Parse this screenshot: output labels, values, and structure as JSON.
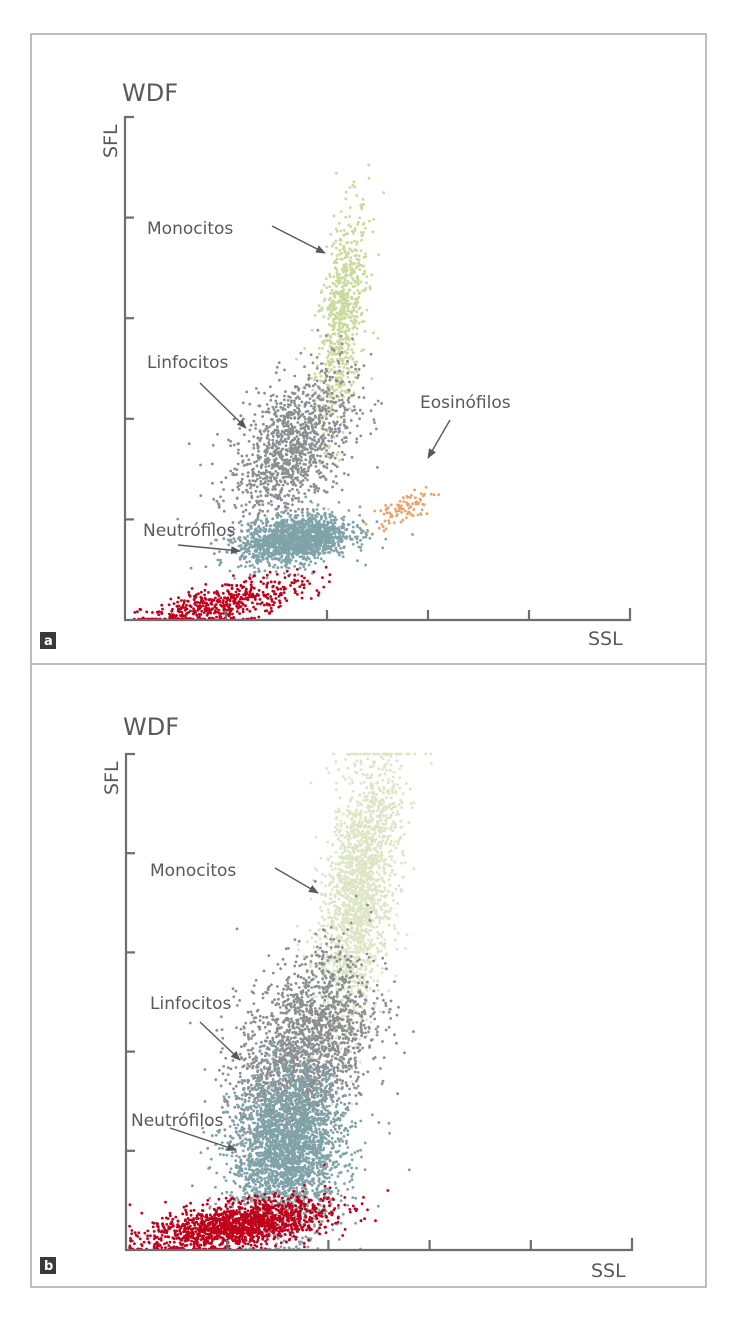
{
  "chart_data": [
    {
      "type": "scatter",
      "panel_label": "a",
      "title": "WDF",
      "xlabel": "SSL",
      "ylabel": "SFL",
      "xlim": [
        0,
        5
      ],
      "ylim": [
        0,
        5
      ],
      "grid": false,
      "annotations": [
        "Monocitos",
        "Linfocitos",
        "Eosinófilos",
        "Neutrófilos"
      ],
      "clusters": [
        {
          "label": "Monocitos",
          "color": "#c9da9c",
          "n": 700,
          "center": [
            2.15,
            3.0
          ],
          "spread": [
            0.13,
            0.55
          ],
          "corr": 0.5
        },
        {
          "label": "Linfocitos",
          "color": "#8d8e90",
          "n": 1200,
          "center": [
            1.65,
            1.7
          ],
          "spread": [
            0.3,
            0.4
          ],
          "corr": 0.5
        },
        {
          "label": "Neutrófilos",
          "color": "#7fa3a8",
          "n": 1500,
          "center": [
            1.69,
            0.8
          ],
          "spread": [
            0.27,
            0.12
          ],
          "corr": 0.3
        },
        {
          "label": "",
          "color": "#c1001b",
          "n": 500,
          "center": [
            1.0,
            0.17
          ],
          "spread": [
            0.4,
            0.13
          ],
          "corr": 0.7
        },
        {
          "label": "Eosinófilos",
          "color": "#e8a26c",
          "n": 90,
          "center": [
            2.75,
            1.1
          ],
          "spread": [
            0.15,
            0.1
          ],
          "corr": 0.7
        }
      ]
    },
    {
      "type": "scatter",
      "panel_label": "b",
      "title": "WDF",
      "xlabel": "SSL",
      "ylabel": "SFL",
      "xlim": [
        0,
        5
      ],
      "ylim": [
        0,
        5
      ],
      "grid": false,
      "annotations": [
        "Monocitos",
        "Linfocitos",
        "Neutrófilos"
      ],
      "clusters": [
        {
          "label": "Monocitos",
          "color": "#dde6c4",
          "n": 2000,
          "center": [
            2.3,
            3.6
          ],
          "spread": [
            0.2,
            0.7
          ],
          "corr": 0.5
        },
        {
          "label": "Linfocitos",
          "color": "#8d8e90",
          "n": 2000,
          "center": [
            1.75,
            2.0
          ],
          "spread": [
            0.33,
            0.5
          ],
          "corr": 0.4
        },
        {
          "label": "Neutrófilos",
          "color": "#7fa3a8",
          "n": 2500,
          "center": [
            1.6,
            1.0
          ],
          "spread": [
            0.28,
            0.4
          ],
          "corr": 0.1
        },
        {
          "label": "",
          "color": "#c1001b",
          "n": 1500,
          "center": [
            1.1,
            0.25
          ],
          "spread": [
            0.45,
            0.13
          ],
          "corr": 0.5
        }
      ]
    }
  ]
}
